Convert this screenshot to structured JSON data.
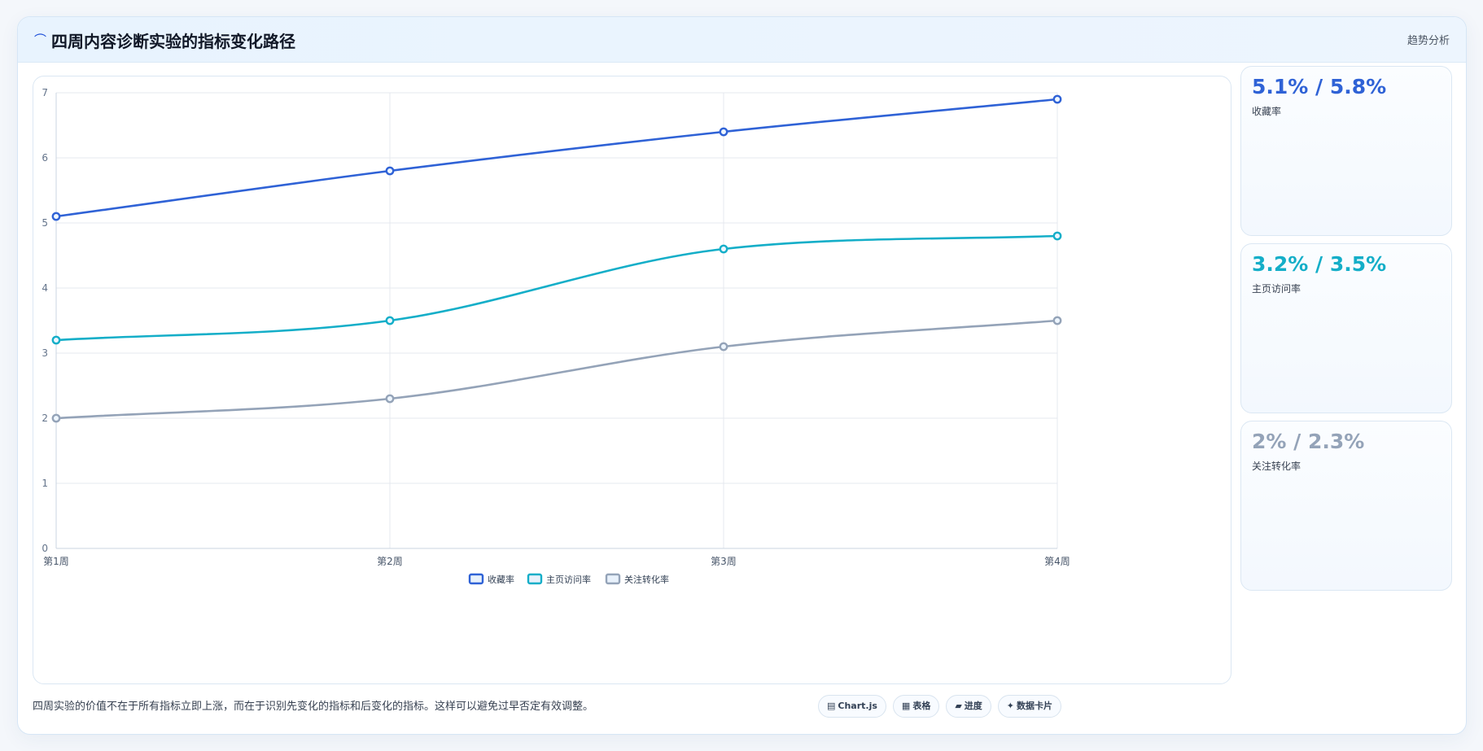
{
  "header": {
    "icon": "trend-line-icon",
    "icon_glyph": "⌒",
    "title": "四周内容诊断实验的指标变化路径",
    "action": "趋势分析"
  },
  "chart_data": {
    "type": "line",
    "categories": [
      "第1周",
      "第2周",
      "第3周",
      "第4周"
    ],
    "series": [
      {
        "name": "收藏率",
        "values": [
          5.1,
          5.8,
          6.4,
          6.9
        ],
        "color": "#2f62d6"
      },
      {
        "name": "主页访问率",
        "values": [
          3.2,
          3.5,
          4.6,
          4.8
        ],
        "color": "#14aec8"
      },
      {
        "name": "关注转化率",
        "values": [
          2.0,
          2.3,
          3.1,
          3.5
        ],
        "color": "#94a3b8"
      }
    ],
    "ylim": [
      0,
      7
    ],
    "yticks": [
      0,
      1,
      2,
      3,
      4,
      5,
      6,
      7
    ],
    "grid": true,
    "legend_position": "bottom-center",
    "smooth": true
  },
  "side_cards": [
    {
      "value": "5.1% / 5.8%",
      "label": "收藏率",
      "color": "#2f62d6"
    },
    {
      "value": "3.2% / 3.5%",
      "label": "主页访问率",
      "color": "#14aec8"
    },
    {
      "value": "2% / 2.3%",
      "label": "关注转化率",
      "color": "#94a3b8"
    }
  ],
  "footer": {
    "note": "四周实验的价值不在于所有指标立即上涨，而在于识别先变化的指标和后变化的指标。这样可以避免过早否定有效调整。"
  },
  "chips": [
    {
      "icon": "chart-icon",
      "glyph": "▤",
      "label": "Chart.js"
    },
    {
      "icon": "table-icon",
      "glyph": "▦",
      "label": "表格"
    },
    {
      "icon": "progress-icon",
      "glyph": "▰",
      "label": "进度"
    },
    {
      "icon": "card-icon",
      "glyph": "✦",
      "label": "数据卡片"
    }
  ]
}
